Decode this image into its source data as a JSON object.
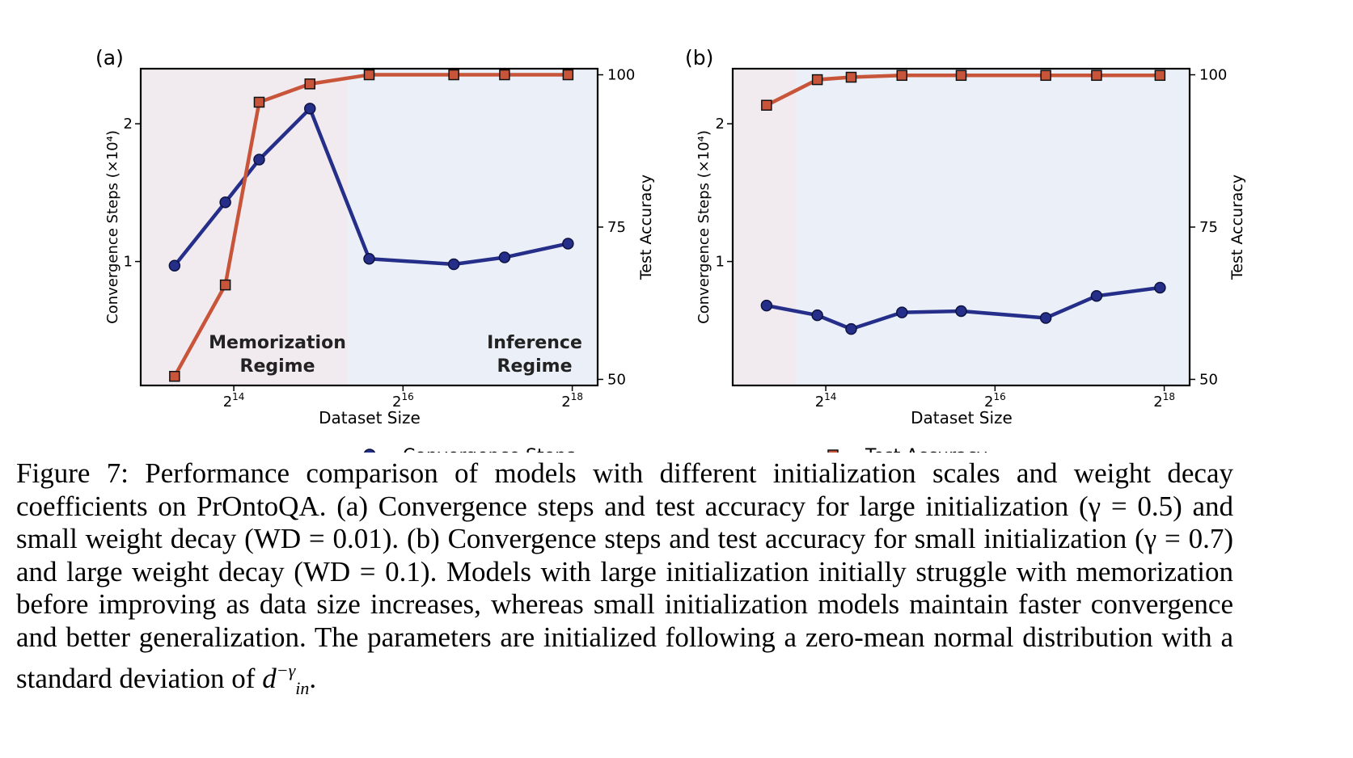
{
  "figure": {
    "panels": [
      {
        "label": "(a)",
        "xlabel": "Dataset Size",
        "ylabel_left": "Convergence Steps (×10⁴)",
        "ylabel_right": "Test Accuracy",
        "regions": [
          {
            "line1": "Memorization",
            "line2": "Regime"
          },
          {
            "line1": "Inference",
            "line2": "Regime"
          }
        ]
      },
      {
        "label": "(b)",
        "xlabel": "Dataset Size",
        "ylabel_left": "Convergence Steps (×10⁴)",
        "ylabel_right": "Test Accuracy",
        "regions": []
      }
    ],
    "legend": {
      "convergence": "Convergence Steps",
      "accuracy": "Test Accuracy"
    },
    "caption": {
      "lead": "Figure 7: Performance comparison of models with different initialization scales and weight decay coefficients on PrOntoQA. (a) Convergence steps and test accuracy for large initialization (γ = 0.5) and small weight decay (WD = 0.01). (b) Convergence steps and test accuracy for small initialization (γ = 0.7) and large weight decay (WD = 0.1). Models with large initialization initially struggle with memorization before improving as data size increases, whereas small initialization models maintain faster convergence and better generalization. The parameters are initialized following a zero-mean normal distribution with a standard deviation of ",
      "d": "d",
      "sup": "−γ",
      "sub": "in",
      "tail": "."
    }
  },
  "chart_data": [
    {
      "type": "line",
      "title": "(a)",
      "xlabel": "Dataset Size",
      "ylabel": "Convergence Steps (×10⁴)",
      "y2label": "Test Accuracy",
      "xscale": "log2",
      "xticks": [
        "2¹⁴",
        "2¹⁶",
        "2¹⁸"
      ],
      "xlim_log2": [
        12.9,
        18.3
      ],
      "ylim": [
        0.1,
        2.4
      ],
      "y2lim": [
        49,
        101
      ],
      "yticks": [
        1,
        2
      ],
      "y2ticks": [
        50,
        75,
        100
      ],
      "x_log2": [
        13.3,
        13.9,
        14.3,
        14.9,
        15.6,
        16.6,
        17.2,
        17.95
      ],
      "series": [
        {
          "name": "Convergence Steps",
          "axis": "left",
          "color": "#252f8a",
          "marker": "circle",
          "values": [
            0.97,
            1.43,
            1.74,
            2.11,
            1.02,
            0.98,
            1.03,
            1.13
          ]
        },
        {
          "name": "Test Accuracy",
          "axis": "right",
          "color": "#c8553a",
          "marker": "square",
          "values": [
            50.5,
            65.5,
            95.5,
            98.5,
            100,
            100,
            100,
            100
          ]
        }
      ],
      "shaded_regions": [
        {
          "name": "Memorization Regime",
          "from_log2": 12.9,
          "to_log2": 15.35,
          "color": "#f1ebef"
        },
        {
          "name": "Inference Regime",
          "from_log2": 15.35,
          "to_log2": 18.3,
          "color": "#ebf0f8"
        }
      ],
      "grid": false
    },
    {
      "type": "line",
      "title": "(b)",
      "xlabel": "Dataset Size",
      "ylabel": "Convergence Steps (×10⁴)",
      "y2label": "Test Accuracy",
      "xscale": "log2",
      "xticks": [
        "2¹⁴",
        "2¹⁶",
        "2¹⁸"
      ],
      "xlim_log2": [
        12.9,
        18.3
      ],
      "ylim": [
        0.1,
        2.4
      ],
      "y2lim": [
        49,
        101
      ],
      "yticks": [
        1,
        2
      ],
      "y2ticks": [
        50,
        75,
        100
      ],
      "x_log2": [
        13.3,
        13.9,
        14.3,
        14.9,
        15.6,
        16.6,
        17.2,
        17.95
      ],
      "series": [
        {
          "name": "Convergence Steps",
          "axis": "left",
          "color": "#252f8a",
          "marker": "circle",
          "values": [
            0.68,
            0.61,
            0.51,
            0.63,
            0.64,
            0.59,
            0.75,
            0.81
          ]
        },
        {
          "name": "Test Accuracy",
          "axis": "right",
          "color": "#c8553a",
          "marker": "square",
          "values": [
            95,
            99.2,
            99.6,
            99.9,
            99.9,
            99.9,
            99.9,
            99.9
          ]
        }
      ],
      "shaded_regions": [
        {
          "from_log2": 12.9,
          "to_log2": 13.65,
          "color": "#f1ebef"
        },
        {
          "from_log2": 13.65,
          "to_log2": 18.3,
          "color": "#ebf0f8"
        }
      ],
      "grid": false
    }
  ]
}
